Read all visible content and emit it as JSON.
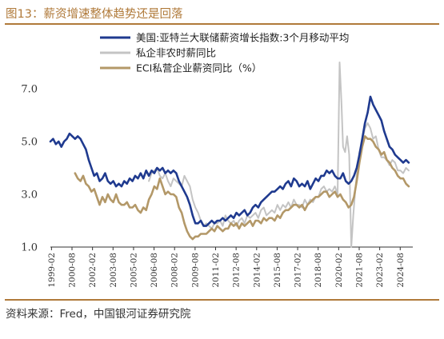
{
  "header": {
    "title": "图13：薪资增速整体趋势还是回落"
  },
  "footer": {
    "source": "资料来源：Fred，中国银河证券研究院"
  },
  "chart_data": {
    "type": "line",
    "xlim": [
      1999.0,
      2025.5
    ],
    "ylim": [
      1.0,
      8.0
    ],
    "yticks": [
      1.0,
      3.0,
      5.0,
      7.0
    ],
    "ytick_labels": [
      "1.0",
      "3.0",
      "5.0",
      "7.0"
    ],
    "xtick_labels": [
      "1999-02",
      "2000-08",
      "2002-02",
      "2003-08",
      "2005-02",
      "2006-08",
      "2008-02",
      "2009-08",
      "2011-02",
      "2012-08",
      "2014-02",
      "2015-08",
      "2017-02",
      "2018-08",
      "2020-02",
      "2021-08",
      "2023-02",
      "2024-08"
    ],
    "xtick_positions": [
      1999.08,
      2000.58,
      2002.08,
      2003.58,
      2005.08,
      2006.58,
      2008.08,
      2009.58,
      2011.08,
      2012.58,
      2014.08,
      2015.58,
      2017.08,
      2018.58,
      2020.08,
      2021.58,
      2023.08,
      2024.58
    ],
    "legend_position": "top-center",
    "series": [
      {
        "name": "美国:亚特兰大联储薪资增长指数:3个月移动平均",
        "color": "#1f3a8f",
        "x": [
          1999.0,
          1999.2,
          1999.4,
          1999.6,
          1999.8,
          2000.0,
          2000.2,
          2000.4,
          2000.6,
          2000.8,
          2001.0,
          2001.2,
          2001.4,
          2001.6,
          2001.8,
          2002.0,
          2002.2,
          2002.4,
          2002.6,
          2002.8,
          2003.0,
          2003.2,
          2003.4,
          2003.6,
          2003.8,
          2004.0,
          2004.2,
          2004.4,
          2004.6,
          2004.8,
          2005.0,
          2005.2,
          2005.4,
          2005.6,
          2005.8,
          2006.0,
          2006.2,
          2006.4,
          2006.6,
          2006.8,
          2007.0,
          2007.2,
          2007.4,
          2007.6,
          2007.8,
          2008.0,
          2008.2,
          2008.4,
          2008.6,
          2008.8,
          2009.0,
          2009.2,
          2009.4,
          2009.6,
          2009.8,
          2010.0,
          2010.2,
          2010.4,
          2010.6,
          2010.8,
          2011.0,
          2011.2,
          2011.4,
          2011.6,
          2011.8,
          2012.0,
          2012.2,
          2012.4,
          2012.6,
          2012.8,
          2013.0,
          2013.2,
          2013.4,
          2013.6,
          2013.8,
          2014.0,
          2014.2,
          2014.4,
          2014.6,
          2014.8,
          2015.0,
          2015.2,
          2015.4,
          2015.6,
          2015.8,
          2016.0,
          2016.2,
          2016.4,
          2016.6,
          2016.8,
          2017.0,
          2017.2,
          2017.4,
          2017.6,
          2017.8,
          2018.0,
          2018.2,
          2018.4,
          2018.6,
          2018.8,
          2019.0,
          2019.2,
          2019.4,
          2019.6,
          2019.8,
          2020.0,
          2020.2,
          2020.4,
          2020.6,
          2020.8,
          2021.0,
          2021.2,
          2021.4,
          2021.6,
          2021.8,
          2022.0,
          2022.2,
          2022.4,
          2022.6,
          2022.8,
          2023.0,
          2023.2,
          2023.4,
          2023.6,
          2023.8,
          2024.0,
          2024.2,
          2024.4,
          2024.6,
          2024.8,
          2025.0,
          2025.2
        ],
        "values": [
          5.0,
          5.1,
          4.9,
          5.0,
          4.8,
          5.0,
          5.1,
          5.3,
          5.2,
          5.1,
          5.2,
          5.1,
          4.9,
          4.7,
          4.3,
          4.0,
          3.7,
          3.8,
          3.5,
          3.6,
          3.8,
          3.5,
          3.4,
          3.5,
          3.3,
          3.4,
          3.3,
          3.5,
          3.4,
          3.6,
          3.5,
          3.7,
          3.6,
          3.8,
          3.6,
          3.9,
          3.7,
          3.9,
          3.8,
          4.0,
          3.9,
          4.0,
          3.8,
          3.9,
          3.8,
          3.9,
          3.8,
          3.5,
          3.3,
          3.1,
          2.9,
          2.6,
          2.2,
          1.9,
          1.9,
          2.0,
          1.8,
          1.8,
          1.9,
          2.0,
          1.9,
          2.0,
          2.0,
          2.1,
          2.0,
          2.1,
          2.2,
          2.1,
          2.3,
          2.2,
          2.3,
          2.4,
          2.2,
          2.3,
          2.5,
          2.6,
          2.5,
          2.7,
          2.8,
          2.9,
          3.0,
          3.1,
          3.1,
          3.2,
          3.3,
          3.2,
          3.4,
          3.5,
          3.3,
          3.6,
          3.5,
          3.3,
          3.4,
          3.3,
          3.5,
          3.2,
          3.4,
          3.6,
          3.5,
          3.7,
          3.7,
          3.9,
          3.8,
          3.9,
          3.7,
          3.6,
          3.6,
          3.8,
          3.5,
          3.4,
          3.5,
          3.7,
          4.0,
          4.5,
          5.1,
          5.7,
          6.1,
          6.7,
          6.4,
          6.2,
          6.0,
          5.8,
          5.4,
          5.1,
          4.8,
          4.7,
          4.5,
          4.4,
          4.3,
          4.2,
          4.3,
          4.2
        ]
      },
      {
        "name": "私企非农时薪同比",
        "color": "#c4c4c4",
        "x": [
          2006.2,
          2006.4,
          2006.6,
          2006.8,
          2007.0,
          2007.2,
          2007.4,
          2007.6,
          2007.8,
          2008.0,
          2008.2,
          2008.4,
          2008.6,
          2008.8,
          2009.0,
          2009.2,
          2009.4,
          2009.6,
          2009.8,
          2010.0,
          2010.2,
          2010.4,
          2010.6,
          2010.8,
          2011.0,
          2011.2,
          2011.4,
          2011.6,
          2011.8,
          2012.0,
          2012.2,
          2012.4,
          2012.6,
          2012.8,
          2013.0,
          2013.2,
          2013.4,
          2013.6,
          2013.8,
          2014.0,
          2014.2,
          2014.4,
          2014.6,
          2014.8,
          2015.0,
          2015.2,
          2015.4,
          2015.6,
          2015.8,
          2016.0,
          2016.2,
          2016.4,
          2016.6,
          2016.8,
          2017.0,
          2017.2,
          2017.4,
          2017.6,
          2017.8,
          2018.0,
          2018.2,
          2018.4,
          2018.6,
          2018.8,
          2019.0,
          2019.2,
          2019.4,
          2019.6,
          2019.8,
          2020.0,
          2020.15,
          2020.28,
          2020.4,
          2020.55,
          2020.7,
          2020.85,
          2021.0,
          2021.15,
          2021.3,
          2021.45,
          2021.6,
          2021.8,
          2022.0,
          2022.2,
          2022.4,
          2022.6,
          2022.8,
          2023.0,
          2023.2,
          2023.4,
          2023.6,
          2023.8,
          2024.0,
          2024.2,
          2024.4,
          2024.6,
          2024.8,
          2025.0,
          2025.2
        ],
        "values": [
          3.5,
          3.8,
          3.9,
          4.0,
          3.7,
          3.6,
          3.8,
          3.5,
          3.3,
          3.6,
          3.5,
          3.4,
          3.3,
          3.7,
          3.5,
          3.3,
          2.8,
          2.5,
          2.3,
          2.0,
          1.8,
          1.9,
          1.8,
          1.7,
          1.9,
          1.9,
          2.0,
          1.8,
          2.2,
          2.0,
          1.9,
          2.0,
          1.8,
          2.0,
          2.1,
          1.9,
          2.2,
          2.1,
          2.2,
          2.3,
          2.1,
          2.4,
          2.5,
          2.2,
          2.3,
          2.4,
          2.3,
          2.6,
          2.4,
          2.6,
          2.5,
          2.7,
          2.5,
          2.8,
          2.6,
          2.6,
          2.5,
          2.8,
          2.6,
          2.8,
          2.7,
          2.9,
          2.9,
          3.2,
          3.3,
          3.1,
          3.2,
          3.1,
          3.3,
          3.0,
          8.0,
          6.5,
          4.8,
          4.6,
          5.2,
          4.5,
          1.0,
          2.2,
          3.2,
          4.0,
          4.6,
          5.0,
          5.5,
          5.7,
          5.5,
          5.1,
          5.2,
          4.7,
          4.4,
          4.4,
          4.3,
          4.1,
          4.3,
          4.2,
          3.9,
          3.9,
          3.8,
          4.0,
          3.9
        ]
      },
      {
        "name": "ECI私营企业薪资同比（%）",
        "color": "#b39868",
        "x": [
          2000.8,
          2001.0,
          2001.2,
          2001.4,
          2001.6,
          2001.8,
          2002.0,
          2002.2,
          2002.4,
          2002.6,
          2002.8,
          2003.0,
          2003.2,
          2003.4,
          2003.6,
          2003.8,
          2004.0,
          2004.2,
          2004.4,
          2004.6,
          2004.8,
          2005.0,
          2005.2,
          2005.4,
          2005.6,
          2005.8,
          2006.0,
          2006.2,
          2006.4,
          2006.6,
          2006.8,
          2007.0,
          2007.2,
          2007.4,
          2007.6,
          2007.8,
          2008.0,
          2008.2,
          2008.4,
          2008.6,
          2008.8,
          2009.0,
          2009.2,
          2009.4,
          2009.6,
          2009.8,
          2010.0,
          2010.2,
          2010.4,
          2010.6,
          2010.8,
          2011.0,
          2011.2,
          2011.4,
          2011.6,
          2011.8,
          2012.0,
          2012.2,
          2012.4,
          2012.6,
          2012.8,
          2013.0,
          2013.2,
          2013.4,
          2013.6,
          2013.8,
          2014.0,
          2014.2,
          2014.4,
          2014.6,
          2014.8,
          2015.0,
          2015.2,
          2015.4,
          2015.6,
          2015.8,
          2016.0,
          2016.2,
          2016.4,
          2016.6,
          2016.8,
          2017.0,
          2017.2,
          2017.4,
          2017.6,
          2017.8,
          2018.0,
          2018.2,
          2018.4,
          2018.6,
          2018.8,
          2019.0,
          2019.2,
          2019.4,
          2019.6,
          2019.8,
          2020.0,
          2020.2,
          2020.4,
          2020.6,
          2020.8,
          2021.0,
          2021.2,
          2021.4,
          2021.6,
          2021.8,
          2022.0,
          2022.2,
          2022.4,
          2022.6,
          2022.8,
          2023.0,
          2023.2,
          2023.4,
          2023.6,
          2023.8,
          2024.0,
          2024.2,
          2024.4,
          2024.6,
          2024.8,
          2025.0,
          2025.2
        ],
        "values": [
          3.8,
          3.6,
          3.5,
          3.7,
          3.4,
          3.3,
          3.1,
          3.2,
          2.9,
          2.6,
          2.9,
          2.7,
          3.0,
          2.8,
          2.7,
          3.0,
          2.7,
          2.6,
          2.6,
          2.7,
          2.5,
          2.5,
          2.6,
          2.4,
          2.3,
          2.5,
          2.4,
          2.8,
          3.0,
          3.3,
          3.2,
          3.6,
          3.3,
          3.0,
          3.1,
          3.0,
          3.0,
          2.9,
          2.5,
          2.3,
          1.9,
          1.6,
          1.4,
          1.3,
          1.4,
          1.4,
          1.5,
          1.5,
          1.5,
          1.6,
          1.7,
          1.6,
          1.8,
          1.7,
          1.6,
          1.7,
          1.7,
          1.9,
          1.8,
          1.9,
          1.7,
          1.9,
          1.8,
          1.9,
          2.0,
          1.8,
          2.0,
          2.0,
          1.9,
          2.1,
          2.0,
          2.1,
          2.1,
          2.0,
          2.2,
          2.1,
          2.3,
          2.4,
          2.4,
          2.5,
          2.6,
          2.6,
          2.5,
          2.6,
          2.4,
          2.6,
          2.7,
          2.8,
          2.9,
          2.9,
          3.0,
          3.1,
          3.1,
          2.9,
          3.0,
          3.1,
          2.9,
          3.0,
          2.8,
          2.7,
          2.5,
          2.6,
          2.9,
          3.5,
          4.2,
          4.8,
          5.2,
          5.1,
          5.1,
          5.0,
          4.8,
          4.7,
          4.5,
          4.6,
          4.3,
          4.2,
          4.0,
          3.9,
          3.7,
          3.6,
          3.6,
          3.4,
          3.3
        ]
      }
    ]
  }
}
